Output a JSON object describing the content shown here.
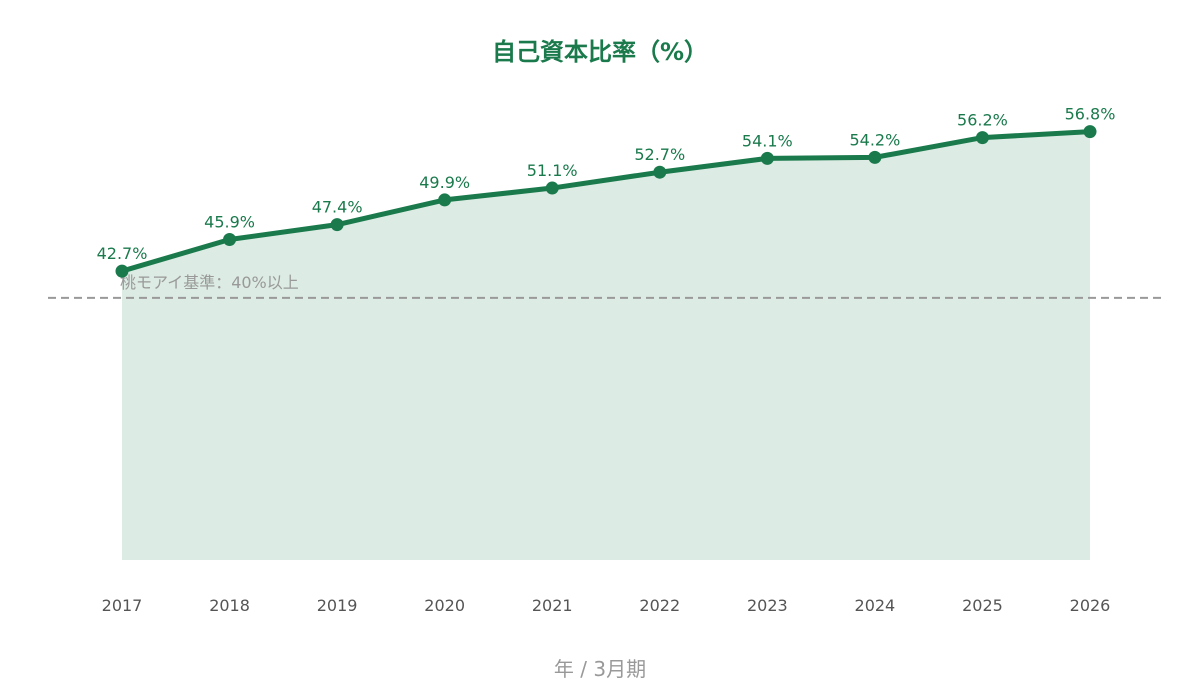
{
  "chart_data": {
    "type": "area",
    "title": "自己資本比率（%）",
    "xlabel": "年 / 3月期",
    "ylabel": "",
    "categories": [
      "2017",
      "2018",
      "2019",
      "2020",
      "2021",
      "2022",
      "2023",
      "2024",
      "2025",
      "2026"
    ],
    "series": [
      {
        "values": [
          42.7,
          45.9,
          47.4,
          49.9,
          51.1,
          52.7,
          54.1,
          54.2,
          56.2,
          56.8
        ]
      }
    ],
    "data_labels": [
      "42.7%",
      "45.9%",
      "47.4%",
      "49.9%",
      "51.1%",
      "52.7%",
      "54.1%",
      "54.2%",
      "56.2%",
      "56.8%"
    ],
    "ylim": [
      13.5,
      60
    ],
    "reference_line": {
      "value": 40,
      "label": "桃モアイ基準：40%以上",
      "style": "dashed"
    },
    "grid": false,
    "legend": "none",
    "y_axis_visible": false
  },
  "colors": {
    "line": "#1a7a4c",
    "area": "#dcebe3",
    "title": "#1a7a4c",
    "data_label": "#1a7a4c",
    "tick": "#555555",
    "xlabel": "#999999",
    "reference": "#999999"
  }
}
